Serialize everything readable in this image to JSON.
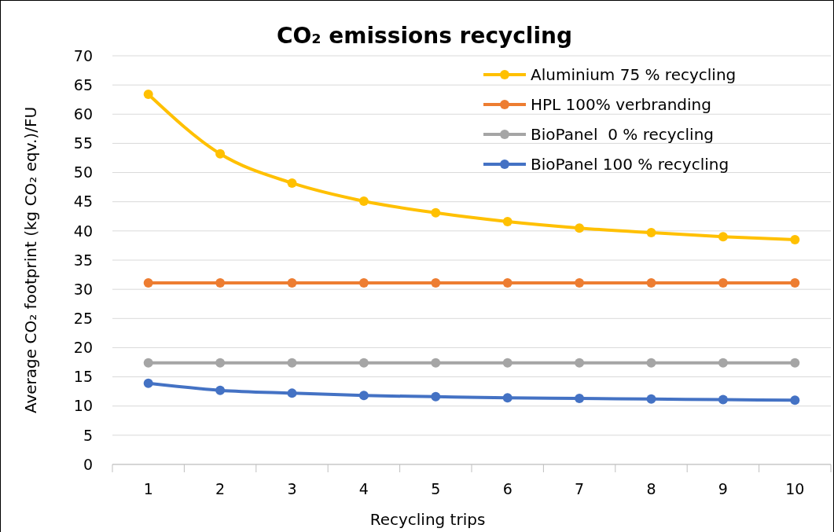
{
  "chart_data": {
    "type": "line",
    "title": "CO₂ emissions recycling",
    "xlabel": "Recycling trips",
    "ylabel": "Average CO₂ footprint (kg CO₂ eqv.)/FU",
    "categories": [
      "1",
      "2",
      "3",
      "4",
      "5",
      "6",
      "7",
      "8",
      "9",
      "10"
    ],
    "series": [
      {
        "name": "Aluminium 75 % recycling",
        "color": "#ffc000",
        "values": [
          63.4,
          53.2,
          48.2,
          45.1,
          43.1,
          41.6,
          40.5,
          39.7,
          39.0,
          38.5
        ]
      },
      {
        "name": "HPL 100% verbranding",
        "color": "#ed7d31",
        "values": [
          31.1,
          31.1,
          31.1,
          31.1,
          31.1,
          31.1,
          31.1,
          31.1,
          31.1,
          31.1
        ]
      },
      {
        "name": "BioPanel  0 % recycling",
        "color": "#a5a5a5",
        "values": [
          17.4,
          17.4,
          17.4,
          17.4,
          17.4,
          17.4,
          17.4,
          17.4,
          17.4,
          17.4
        ]
      },
      {
        "name": "BioPanel 100 % recycling",
        "color": "#4472c4",
        "values": [
          13.9,
          12.7,
          12.2,
          11.8,
          11.6,
          11.4,
          11.3,
          11.2,
          11.1,
          11.0
        ]
      }
    ],
    "ylim": [
      0,
      70
    ],
    "yticks": [
      0,
      5,
      10,
      15,
      20,
      25,
      30,
      35,
      40,
      45,
      50,
      55,
      60,
      65,
      70
    ],
    "grid": "y",
    "legend": "top right",
    "marker": "circle",
    "line_style": "solid"
  }
}
